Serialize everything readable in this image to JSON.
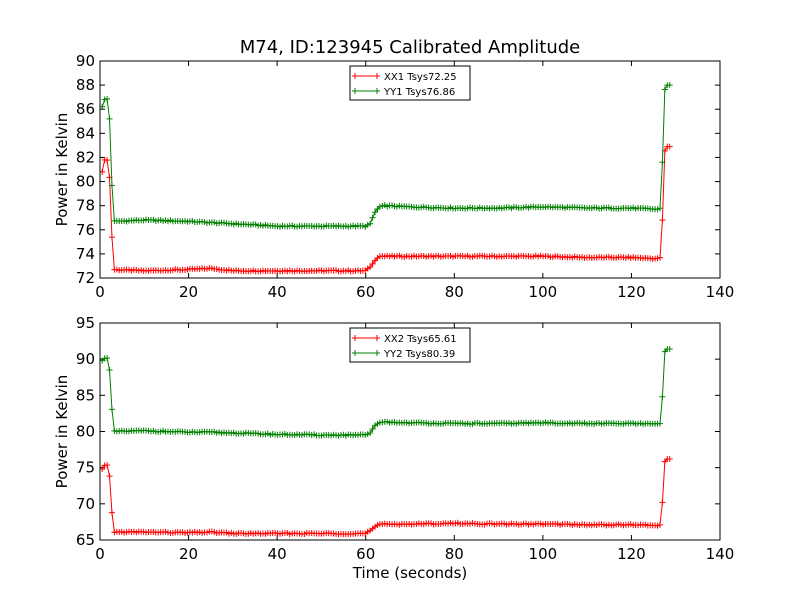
{
  "figure_title": "M74, ID:123945 Calibrated Amplitude",
  "xlabel": "Time (seconds)",
  "colors": {
    "XX": "#ff0000",
    "YY": "#008000"
  },
  "chart_data": [
    {
      "type": "line",
      "ylabel": "Power in Kelvin",
      "xlim": [
        0,
        140
      ],
      "ylim": [
        72,
        90
      ],
      "xticks": [
        0,
        20,
        40,
        60,
        80,
        100,
        120,
        140
      ],
      "yticks": [
        72,
        74,
        76,
        78,
        80,
        82,
        84,
        86,
        88,
        90
      ],
      "legend_position": "top-center",
      "series": [
        {
          "name": "XX1 Tsys72.25",
          "color": "#ff0000",
          "marker": "+",
          "x": [
            0.5,
            1.0,
            1.5,
            2.0,
            3,
            10,
            20,
            25,
            30,
            40,
            50,
            60,
            61,
            62,
            63,
            64,
            70,
            80,
            90,
            100,
            110,
            120,
            126,
            126.5,
            127,
            127.5,
            128,
            129
          ],
          "y": [
            80.8,
            81.8,
            81.8,
            81.7,
            72.7,
            72.6,
            72.7,
            72.8,
            72.6,
            72.6,
            72.6,
            72.6,
            72.9,
            73.4,
            73.8,
            73.8,
            73.8,
            73.8,
            73.8,
            73.8,
            73.7,
            73.7,
            73.6,
            73.7,
            76.8,
            82.5,
            82.9,
            82.9
          ]
        },
        {
          "name": "YY1 Tsys76.86",
          "color": "#008000",
          "marker": "+",
          "x": [
            0.5,
            1.0,
            1.5,
            2.0,
            3,
            10,
            20,
            25,
            30,
            40,
            50,
            60,
            61,
            62,
            63,
            64,
            70,
            80,
            90,
            100,
            110,
            120,
            126,
            126.5,
            127,
            127.5,
            128,
            129
          ],
          "y": [
            86.2,
            86.8,
            86.9,
            86.7,
            76.7,
            76.8,
            76.7,
            76.6,
            76.5,
            76.3,
            76.3,
            76.3,
            76.5,
            77.4,
            77.9,
            78.0,
            77.9,
            77.8,
            77.8,
            77.9,
            77.8,
            77.8,
            77.7,
            77.8,
            81.6,
            87.6,
            88.0,
            88.0
          ]
        }
      ]
    },
    {
      "type": "line",
      "ylabel": "Power in Kelvin",
      "xlabel": "Time (seconds)",
      "xlim": [
        0,
        140
      ],
      "ylim": [
        65,
        95
      ],
      "xticks": [
        0,
        20,
        40,
        60,
        80,
        100,
        120,
        140
      ],
      "yticks": [
        65,
        70,
        75,
        80,
        85,
        90,
        95
      ],
      "legend_position": "top-center",
      "series": [
        {
          "name": "XX2 Tsys65.61",
          "color": "#ff0000",
          "marker": "+",
          "x": [
            0.5,
            1.0,
            1.5,
            2.0,
            3,
            10,
            20,
            25,
            30,
            40,
            50,
            60,
            61,
            62,
            63,
            64,
            70,
            80,
            90,
            100,
            110,
            120,
            126,
            126.5,
            127,
            127.5,
            128,
            129
          ],
          "y": [
            74.8,
            75.3,
            75.4,
            75.2,
            66.1,
            66.1,
            66.0,
            66.1,
            65.9,
            65.9,
            65.9,
            65.9,
            66.3,
            66.8,
            67.2,
            67.2,
            67.2,
            67.3,
            67.2,
            67.2,
            67.1,
            67.1,
            67.0,
            67.1,
            70.2,
            75.8,
            76.2,
            76.2
          ]
        },
        {
          "name": "YY2 Tsys80.39",
          "color": "#008000",
          "marker": "+",
          "x": [
            0.5,
            1.0,
            1.5,
            2.0,
            3,
            10,
            20,
            25,
            30,
            40,
            50,
            60,
            61,
            62,
            63,
            64,
            70,
            80,
            90,
            100,
            110,
            120,
            126,
            126.5,
            127,
            127.5,
            128,
            129
          ],
          "y": [
            89.8,
            90.1,
            90.2,
            90.0,
            80.0,
            80.1,
            79.9,
            79.9,
            79.8,
            79.6,
            79.5,
            79.5,
            79.8,
            80.8,
            81.2,
            81.3,
            81.2,
            81.1,
            81.1,
            81.2,
            81.1,
            81.1,
            81.0,
            81.1,
            84.8,
            91.0,
            91.4,
            91.4
          ]
        }
      ]
    }
  ]
}
